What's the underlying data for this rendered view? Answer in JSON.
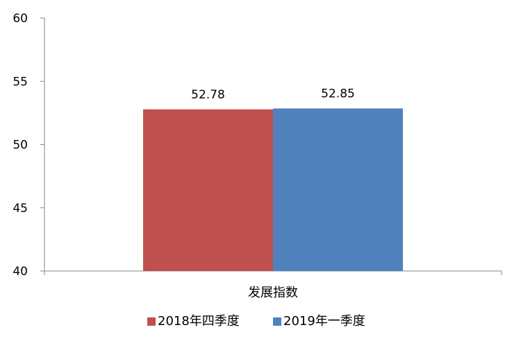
{
  "chart_data": {
    "type": "bar",
    "categories": [
      "发展指数"
    ],
    "series": [
      {
        "name": "2018年四季度",
        "values": [
          52.78
        ],
        "value_label": "52.78",
        "color": "#C0504D"
      },
      {
        "name": "2019年一季度",
        "values": [
          52.85
        ],
        "value_label": "52.85",
        "color": "#4F81BD"
      }
    ],
    "title": "",
    "xlabel": "",
    "ylabel": "",
    "ylim": [
      40,
      60
    ],
    "yticks": [
      "40",
      "45",
      "50",
      "55",
      "60"
    ],
    "grid": false,
    "legend": "bottom"
  }
}
